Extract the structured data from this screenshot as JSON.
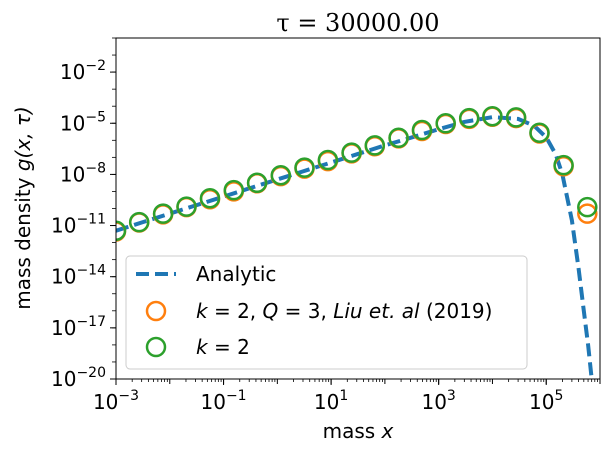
{
  "chart_data": {
    "type": "line",
    "title": "τ = 30000.00",
    "xlabel_text": "mass ",
    "xlabel_var": "x",
    "ylabel_text": "mass density ",
    "ylabel_fn": "g(x, τ)",
    "x_scale": "log",
    "y_scale": "log",
    "xlim": [
      0.001,
      1000000
    ],
    "ylim": [
      1e-20,
      1
    ],
    "x_ticks": [
      {
        "value": 0.001,
        "base": "10",
        "exp": "−3"
      },
      {
        "value": 0.1,
        "base": "10",
        "exp": "−1"
      },
      {
        "value": 10,
        "base": "10",
        "exp": "1"
      },
      {
        "value": 1000,
        "base": "10",
        "exp": "3"
      },
      {
        "value": 100000,
        "base": "10",
        "exp": "5"
      }
    ],
    "y_ticks": [
      {
        "value": 1e-20,
        "base": "10",
        "exp": "−20"
      },
      {
        "value": 1e-17,
        "base": "10",
        "exp": "−17"
      },
      {
        "value": 1e-14,
        "base": "10",
        "exp": "−14"
      },
      {
        "value": 1e-11,
        "base": "10",
        "exp": "−11"
      },
      {
        "value": 1e-08,
        "base": "10",
        "exp": "−8"
      },
      {
        "value": 1e-05,
        "base": "10",
        "exp": "−5"
      },
      {
        "value": 0.01,
        "base": "10",
        "exp": "−2"
      }
    ],
    "grid": false,
    "legend_position": "lower-left",
    "series": [
      {
        "name": "Analytic",
        "style": "dashed-line",
        "color": "#1f77b4",
        "x": [
          0.001,
          0.003,
          0.01,
          0.03,
          0.1,
          0.3,
          1,
          3,
          10,
          30,
          100,
          300,
          1000,
          3000,
          10000,
          30000,
          60000,
          100000,
          150000,
          200000,
          300000,
          400000,
          500000,
          600000,
          700000
        ],
        "y": [
          5e-12,
          1.5e-11,
          5e-11,
          1.5e-10,
          5e-10,
          1.5e-09,
          5e-09,
          1.5e-08,
          5e-08,
          1.5e-07,
          5e-07,
          1.4e-06,
          4.5e-06,
          1.2e-05,
          2.3e-05,
          1.8e-05,
          7e-06,
          1.5e-06,
          1.5e-07,
          1e-08,
          2e-11,
          3e-14,
          1e-16,
          1e-18,
          1e-20
        ]
      },
      {
        "name": "k = 2, Q = 3, Liu et. al (2019)",
        "legend_parts": {
          "k": "k",
          "eq_k": " = 2, ",
          "q": "Q",
          "eq_q": " = 3, ",
          "liu": "Liu et. al",
          "year": " (2019)"
        },
        "style": "open-circle",
        "color": "#ff7f0e",
        "x": [
          0.001,
          0.0027,
          0.0075,
          0.0205,
          0.056,
          0.155,
          0.42,
          1.16,
          3.2,
          8.7,
          24,
          65,
          180,
          490,
          1350,
          3700,
          10000,
          27500,
          75000,
          210000,
          580000
        ],
        "y": [
          4.5e-12,
          1.5e-11,
          4.5e-11,
          1.2e-10,
          3.5e-10,
          1e-09,
          3e-09,
          8e-09,
          2.2e-08,
          6e-08,
          1.7e-07,
          4.5e-07,
          1.3e-06,
          3.5e-06,
          9e-06,
          1.8e-05,
          2.4e-05,
          2e-05,
          2.5e-06,
          3e-08,
          5e-11
        ]
      },
      {
        "name": "k = 2",
        "legend_parts": {
          "k": "k",
          "eq_k": " = 2"
        },
        "style": "open-circle",
        "color": "#2ca02c",
        "x": [
          0.001,
          0.0027,
          0.0075,
          0.0205,
          0.056,
          0.155,
          0.42,
          1.16,
          3.2,
          8.7,
          24,
          65,
          180,
          490,
          1350,
          3700,
          10000,
          27500,
          75000,
          210000,
          580000
        ],
        "y": [
          5e-12,
          1.6e-11,
          5e-11,
          1.3e-10,
          4e-10,
          1.2e-09,
          3.2e-09,
          9e-09,
          2.5e-08,
          7e-08,
          1.9e-07,
          5e-07,
          1.4e-06,
          4e-06,
          1e-05,
          2e-05,
          2.6e-05,
          2.2e-05,
          2.8e-06,
          3.5e-08,
          1.2e-10
        ]
      }
    ]
  }
}
